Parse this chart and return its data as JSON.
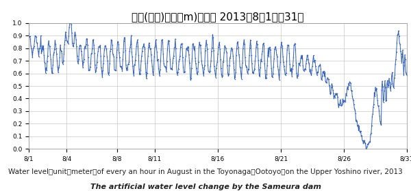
{
  "title": "豊永(大豊)水位（m)毎時： 2013年8月1日～31日",
  "xlabel_bottom": "Water level（unit：meter）of every an hour in August in the Toyonaga（Ootoyo）on the Upper Yoshino river, 2013",
  "xlabel_bottom2": "The artificial water level change by the Sameura dam",
  "line_color": "#3060bb",
  "marker_color": "#3060bb",
  "background_color": "#ffffff",
  "title_fontsize": 11,
  "label_fontsize": 7.5,
  "label2_fontsize": 8.0,
  "yticks": [
    0,
    0.1,
    0.2,
    0.3,
    0.4,
    0.5,
    0.6,
    0.7,
    0.8,
    0.9,
    1.0
  ],
  "xtick_labels": [
    "8/1",
    "8/4",
    "8/8",
    "8/11",
    "8/16",
    "8/21",
    "8/26",
    "8/31"
  ],
  "xtick_positions": [
    0,
    3,
    7,
    10,
    15,
    20,
    25,
    30
  ]
}
